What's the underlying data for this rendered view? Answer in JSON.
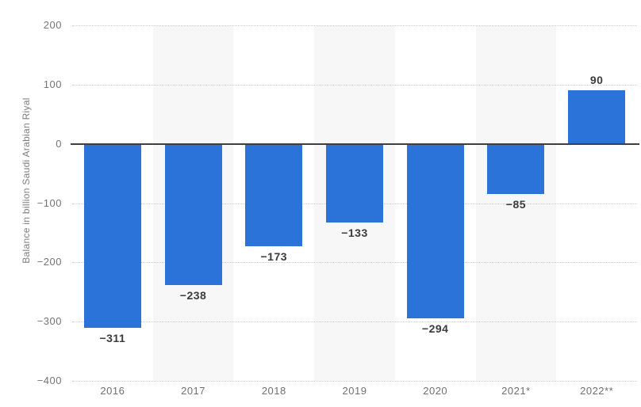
{
  "chart_data": {
    "type": "bar",
    "title": "",
    "xlabel": "",
    "ylabel": "Balance in billion Saudi Arabian Riyal",
    "categories": [
      "2016",
      "2017",
      "2018",
      "2019",
      "2020",
      "2021*",
      "2022**"
    ],
    "values": [
      -311,
      -238,
      -173,
      -133,
      -294,
      -85,
      90
    ],
    "value_labels": [
      "−311",
      "−238",
      "−173",
      "−133",
      "−294",
      "−85",
      "90"
    ],
    "ylim": [
      -400,
      200
    ],
    "yticks": [
      200,
      100,
      0,
      -100,
      -200,
      -300,
      -400
    ],
    "ytick_labels": [
      "200",
      "100",
      "0",
      "−100",
      "−200",
      "−300",
      "−400"
    ],
    "grid": "horizontal-dotted",
    "legend": "none",
    "banded_columns": [
      1,
      3,
      5
    ],
    "colors": {
      "bar": "#2b72d9",
      "band": "#f7f7f7",
      "gridline": "#cccccc",
      "zero_line": "#3f3f3f",
      "value_label": "#3b3b3b",
      "tick_label": "#757575"
    }
  }
}
